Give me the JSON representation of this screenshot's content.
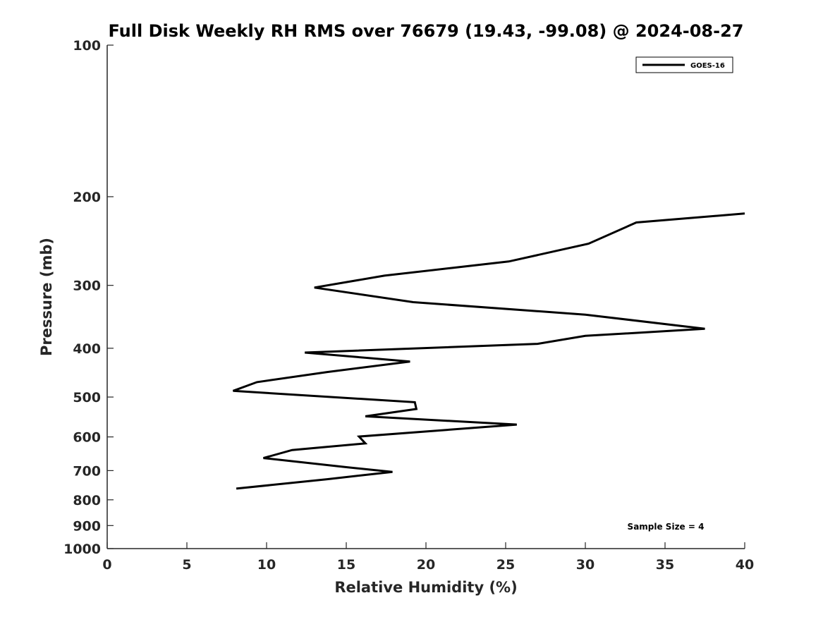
{
  "chart_data": {
    "type": "line",
    "title": "Full Disk Weekly RH RMS over 76679 (19.43, -99.08) @ 2024-08-27",
    "xlabel": "Relative Humidity (%)",
    "ylabel": "Pressure (mb)",
    "xlim": [
      0,
      40
    ],
    "ylim": [
      100,
      1000
    ],
    "y_scale": "log",
    "y_reversed": true,
    "x_ticks": [
      0,
      5,
      10,
      15,
      20,
      25,
      30,
      35,
      40
    ],
    "y_ticks": [
      100,
      200,
      300,
      400,
      500,
      600,
      700,
      800,
      900,
      1000
    ],
    "grid": false,
    "legend_position": "top-right",
    "line_color": "#000000",
    "annotation": "Sample Size = 4",
    "series": [
      {
        "name": "GOES-16",
        "x": [
          40,
          33.2,
          30.2,
          25.2,
          17.4,
          13.0,
          19.2,
          30.0,
          37.5,
          30.0,
          27.0,
          12.4,
          19.0,
          13.8,
          9.4,
          7.9,
          19.3,
          19.4,
          16.2,
          25.7,
          15.8,
          16.2,
          11.6,
          9.8,
          15.0,
          17.9,
          13.8,
          8.1
        ],
        "y": [
          216,
          225,
          248,
          269,
          287,
          303,
          324,
          343,
          366,
          378,
          392,
          408,
          425,
          446,
          467,
          486,
          512,
          528,
          546,
          567,
          599,
          618,
          637,
          661,
          689,
          704,
          728,
          760
        ]
      }
    ]
  }
}
